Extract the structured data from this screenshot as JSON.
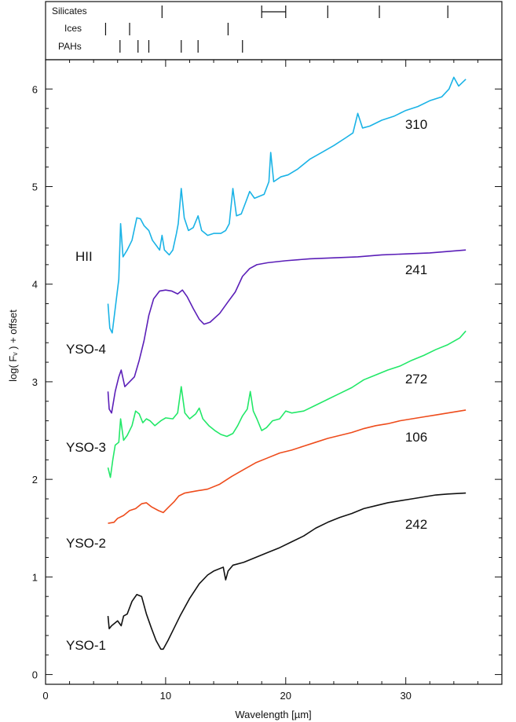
{
  "chart_data": {
    "type": "line",
    "xlabel": "Wavelength [µm]",
    "ylabel": "log( Fᵥ ) + offset",
    "xlim": [
      0,
      38
    ],
    "ylim": [
      -0.1,
      6.3
    ],
    "x_ticks": [
      0,
      10,
      20,
      30
    ],
    "y_ticks": [
      0,
      1,
      2,
      3,
      4,
      5,
      6
    ],
    "grid": false,
    "legend": "none",
    "feature_panel": {
      "rows": [
        {
          "label": "Silicates",
          "lines": [
            9.7,
            18,
            20,
            23.5,
            27.8,
            33.5
          ],
          "bracket": [
            18,
            20
          ]
        },
        {
          "label": "Ices",
          "lines": [
            5,
            7,
            15.2
          ]
        },
        {
          "label": "PAHs",
          "lines": [
            6.2,
            7.7,
            8.6,
            11.3,
            12.7,
            16.4
          ]
        }
      ]
    },
    "series": [
      {
        "label": "YSO-1",
        "id": "242",
        "color": "#111111",
        "points": [
          [
            5.2,
            0.6
          ],
          [
            5.3,
            0.47
          ],
          [
            5.5,
            0.5
          ],
          [
            6.0,
            0.55
          ],
          [
            6.3,
            0.5
          ],
          [
            6.5,
            0.6
          ],
          [
            6.8,
            0.62
          ],
          [
            7.2,
            0.75
          ],
          [
            7.6,
            0.82
          ],
          [
            8.0,
            0.8
          ],
          [
            8.4,
            0.62
          ],
          [
            8.8,
            0.48
          ],
          [
            9.2,
            0.35
          ],
          [
            9.6,
            0.26
          ],
          [
            9.8,
            0.26
          ],
          [
            10.2,
            0.35
          ],
          [
            10.6,
            0.45
          ],
          [
            11.2,
            0.6
          ],
          [
            12.0,
            0.78
          ],
          [
            12.8,
            0.93
          ],
          [
            13.5,
            1.02
          ],
          [
            14.0,
            1.06
          ],
          [
            14.8,
            1.1
          ],
          [
            15.0,
            0.97
          ],
          [
            15.2,
            1.06
          ],
          [
            15.6,
            1.12
          ],
          [
            16.5,
            1.15
          ],
          [
            17.5,
            1.2
          ],
          [
            18.5,
            1.25
          ],
          [
            19.5,
            1.3
          ],
          [
            20.5,
            1.36
          ],
          [
            21.5,
            1.42
          ],
          [
            22.5,
            1.5
          ],
          [
            23.5,
            1.56
          ],
          [
            24.5,
            1.61
          ],
          [
            25.5,
            1.65
          ],
          [
            26.5,
            1.7
          ],
          [
            27.5,
            1.73
          ],
          [
            28.5,
            1.76
          ],
          [
            29.5,
            1.78
          ],
          [
            30.5,
            1.8
          ],
          [
            31.5,
            1.82
          ],
          [
            32.5,
            1.84
          ],
          [
            33.5,
            1.85
          ],
          [
            35.0,
            1.86
          ]
        ]
      },
      {
        "label": "YSO-2",
        "id": "106",
        "color": "#ee4c1c",
        "points": [
          [
            5.2,
            1.55
          ],
          [
            5.7,
            1.56
          ],
          [
            6.0,
            1.6
          ],
          [
            6.5,
            1.63
          ],
          [
            7.0,
            1.68
          ],
          [
            7.5,
            1.7
          ],
          [
            8.0,
            1.75
          ],
          [
            8.4,
            1.76
          ],
          [
            8.8,
            1.72
          ],
          [
            9.4,
            1.68
          ],
          [
            9.8,
            1.66
          ],
          [
            10.2,
            1.71
          ],
          [
            10.7,
            1.77
          ],
          [
            11.1,
            1.83
          ],
          [
            11.6,
            1.86
          ],
          [
            12.5,
            1.88
          ],
          [
            13.5,
            1.9
          ],
          [
            14.5,
            1.95
          ],
          [
            15.5,
            2.03
          ],
          [
            16.5,
            2.1
          ],
          [
            17.5,
            2.17
          ],
          [
            18.5,
            2.22
          ],
          [
            19.5,
            2.27
          ],
          [
            20.5,
            2.3
          ],
          [
            21.5,
            2.34
          ],
          [
            22.5,
            2.38
          ],
          [
            23.5,
            2.42
          ],
          [
            24.5,
            2.45
          ],
          [
            25.5,
            2.48
          ],
          [
            26.5,
            2.52
          ],
          [
            27.5,
            2.55
          ],
          [
            28.5,
            2.57
          ],
          [
            29.5,
            2.6
          ],
          [
            30.5,
            2.62
          ],
          [
            31.5,
            2.64
          ],
          [
            32.5,
            2.66
          ],
          [
            33.5,
            2.68
          ],
          [
            35.0,
            2.71
          ]
        ]
      },
      {
        "label": "YSO-3",
        "id": "272",
        "color": "#22e868",
        "points": [
          [
            5.2,
            2.12
          ],
          [
            5.4,
            2.02
          ],
          [
            5.6,
            2.2
          ],
          [
            5.8,
            2.35
          ],
          [
            6.1,
            2.38
          ],
          [
            6.25,
            2.62
          ],
          [
            6.5,
            2.4
          ],
          [
            6.8,
            2.45
          ],
          [
            7.2,
            2.55
          ],
          [
            7.5,
            2.7
          ],
          [
            7.8,
            2.67
          ],
          [
            8.1,
            2.58
          ],
          [
            8.4,
            2.62
          ],
          [
            8.7,
            2.6
          ],
          [
            9.1,
            2.55
          ],
          [
            9.6,
            2.6
          ],
          [
            10.0,
            2.63
          ],
          [
            10.6,
            2.62
          ],
          [
            11.0,
            2.68
          ],
          [
            11.3,
            2.95
          ],
          [
            11.6,
            2.68
          ],
          [
            12.0,
            2.62
          ],
          [
            12.5,
            2.67
          ],
          [
            12.8,
            2.73
          ],
          [
            13.1,
            2.62
          ],
          [
            13.6,
            2.55
          ],
          [
            14.1,
            2.5
          ],
          [
            14.6,
            2.46
          ],
          [
            15.1,
            2.44
          ],
          [
            15.6,
            2.47
          ],
          [
            16.0,
            2.55
          ],
          [
            16.4,
            2.65
          ],
          [
            16.8,
            2.72
          ],
          [
            17.05,
            2.9
          ],
          [
            17.3,
            2.7
          ],
          [
            17.6,
            2.62
          ],
          [
            18.0,
            2.5
          ],
          [
            18.4,
            2.53
          ],
          [
            18.9,
            2.6
          ],
          [
            19.5,
            2.62
          ],
          [
            20.0,
            2.7
          ],
          [
            20.5,
            2.68
          ],
          [
            21.5,
            2.7
          ],
          [
            22.5,
            2.76
          ],
          [
            23.5,
            2.82
          ],
          [
            24.5,
            2.88
          ],
          [
            25.5,
            2.94
          ],
          [
            26.5,
            3.02
          ],
          [
            27.5,
            3.07
          ],
          [
            28.5,
            3.12
          ],
          [
            29.5,
            3.16
          ],
          [
            30.5,
            3.22
          ],
          [
            31.5,
            3.27
          ],
          [
            32.5,
            3.33
          ],
          [
            33.5,
            3.38
          ],
          [
            34.5,
            3.45
          ],
          [
            35.0,
            3.52
          ]
        ]
      },
      {
        "label": "YSO-4",
        "id": "241",
        "color": "#5b1fb8",
        "points": [
          [
            5.2,
            2.9
          ],
          [
            5.3,
            2.72
          ],
          [
            5.5,
            2.68
          ],
          [
            5.8,
            2.9
          ],
          [
            6.1,
            3.05
          ],
          [
            6.3,
            3.12
          ],
          [
            6.6,
            2.95
          ],
          [
            7.0,
            3.0
          ],
          [
            7.4,
            3.05
          ],
          [
            7.8,
            3.22
          ],
          [
            8.2,
            3.42
          ],
          [
            8.6,
            3.68
          ],
          [
            9.0,
            3.85
          ],
          [
            9.5,
            3.93
          ],
          [
            10.0,
            3.94
          ],
          [
            10.5,
            3.93
          ],
          [
            11.0,
            3.9
          ],
          [
            11.4,
            3.94
          ],
          [
            11.8,
            3.87
          ],
          [
            12.3,
            3.75
          ],
          [
            12.8,
            3.64
          ],
          [
            13.2,
            3.59
          ],
          [
            13.7,
            3.61
          ],
          [
            14.5,
            3.7
          ],
          [
            15.2,
            3.82
          ],
          [
            15.8,
            3.92
          ],
          [
            16.4,
            4.08
          ],
          [
            17.0,
            4.16
          ],
          [
            17.6,
            4.2
          ],
          [
            18.5,
            4.22
          ],
          [
            20.0,
            4.24
          ],
          [
            22.0,
            4.26
          ],
          [
            24.0,
            4.27
          ],
          [
            26.0,
            4.28
          ],
          [
            28.0,
            4.3
          ],
          [
            30.0,
            4.31
          ],
          [
            32.0,
            4.32
          ],
          [
            34.0,
            4.34
          ],
          [
            35.0,
            4.35
          ]
        ]
      },
      {
        "label": "HII",
        "id": "310",
        "color": "#1ab3e6",
        "points": [
          [
            5.2,
            3.8
          ],
          [
            5.35,
            3.55
          ],
          [
            5.55,
            3.5
          ],
          [
            5.8,
            3.75
          ],
          [
            6.1,
            4.05
          ],
          [
            6.25,
            4.62
          ],
          [
            6.45,
            4.28
          ],
          [
            6.8,
            4.35
          ],
          [
            7.2,
            4.45
          ],
          [
            7.6,
            4.68
          ],
          [
            7.9,
            4.67
          ],
          [
            8.2,
            4.6
          ],
          [
            8.6,
            4.55
          ],
          [
            8.9,
            4.45
          ],
          [
            9.2,
            4.4
          ],
          [
            9.5,
            4.35
          ],
          [
            9.7,
            4.5
          ],
          [
            9.9,
            4.35
          ],
          [
            10.3,
            4.3
          ],
          [
            10.6,
            4.35
          ],
          [
            10.9,
            4.52
          ],
          [
            11.05,
            4.62
          ],
          [
            11.3,
            4.98
          ],
          [
            11.55,
            4.68
          ],
          [
            11.9,
            4.55
          ],
          [
            12.3,
            4.58
          ],
          [
            12.7,
            4.7
          ],
          [
            13.0,
            4.55
          ],
          [
            13.5,
            4.5
          ],
          [
            14.0,
            4.52
          ],
          [
            14.6,
            4.52
          ],
          [
            15.0,
            4.55
          ],
          [
            15.3,
            4.62
          ],
          [
            15.6,
            4.98
          ],
          [
            15.9,
            4.7
          ],
          [
            16.3,
            4.72
          ],
          [
            16.7,
            4.85
          ],
          [
            17.0,
            4.95
          ],
          [
            17.4,
            4.88
          ],
          [
            17.8,
            4.9
          ],
          [
            18.2,
            4.92
          ],
          [
            18.6,
            5.05
          ],
          [
            18.75,
            5.35
          ],
          [
            19.0,
            5.05
          ],
          [
            19.6,
            5.1
          ],
          [
            20.2,
            5.12
          ],
          [
            21.0,
            5.18
          ],
          [
            22.0,
            5.28
          ],
          [
            23.0,
            5.35
          ],
          [
            24.0,
            5.42
          ],
          [
            25.0,
            5.5
          ],
          [
            25.6,
            5.55
          ],
          [
            26.0,
            5.75
          ],
          [
            26.4,
            5.6
          ],
          [
            27.0,
            5.62
          ],
          [
            28.0,
            5.68
          ],
          [
            29.0,
            5.72
          ],
          [
            30.0,
            5.78
          ],
          [
            31.0,
            5.82
          ],
          [
            32.0,
            5.88
          ],
          [
            33.0,
            5.92
          ],
          [
            33.6,
            6.0
          ],
          [
            34.0,
            6.12
          ],
          [
            34.4,
            6.03
          ],
          [
            35.0,
            6.1
          ]
        ]
      }
    ]
  }
}
